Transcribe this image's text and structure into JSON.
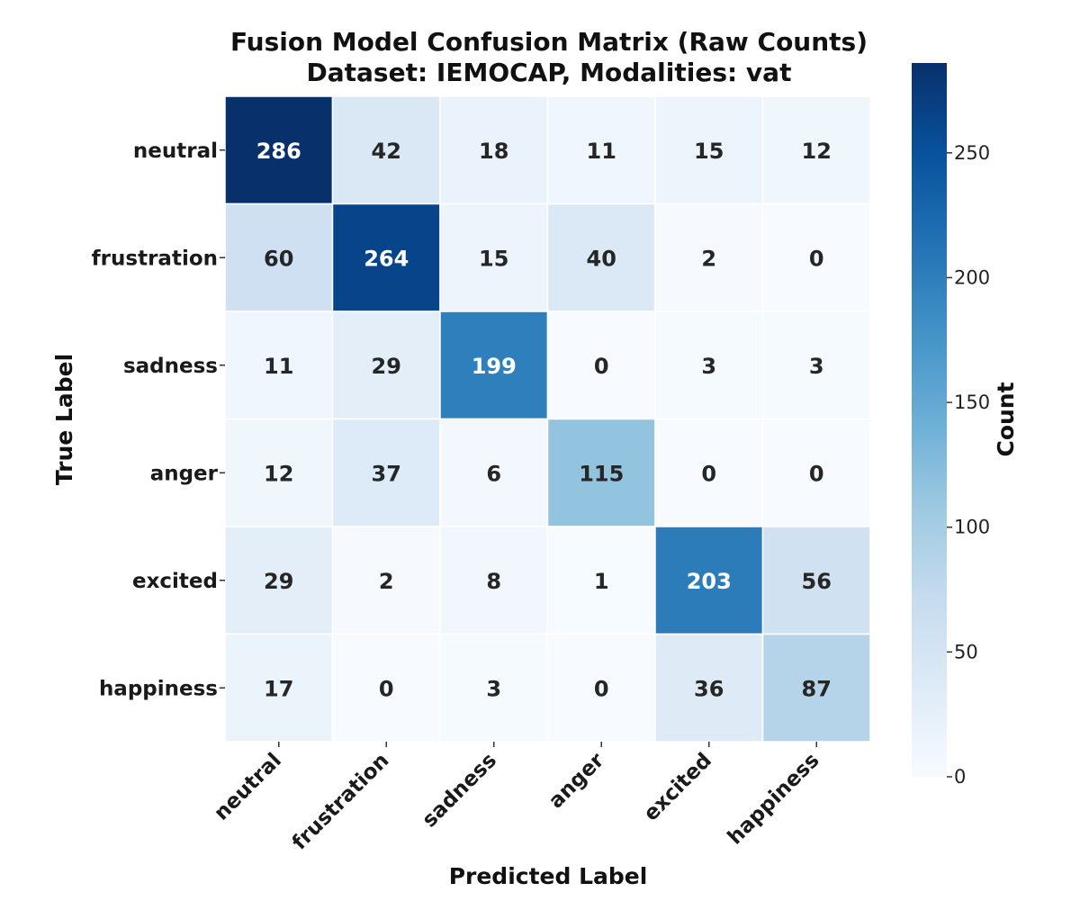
{
  "chart_data": {
    "type": "heatmap",
    "title": "Fusion Model Confusion Matrix (Raw Counts)",
    "subtitle": "Dataset: IEMOCAP, Modalities: vat",
    "xlabel": "Predicted Label",
    "ylabel": "True Label",
    "x_categories": [
      "neutral",
      "frustration",
      "sadness",
      "anger",
      "excited",
      "happiness"
    ],
    "y_categories": [
      "neutral",
      "frustration",
      "sadness",
      "anger",
      "excited",
      "happiness"
    ],
    "values": [
      [
        286,
        42,
        18,
        11,
        15,
        12
      ],
      [
        60,
        264,
        15,
        40,
        2,
        0
      ],
      [
        11,
        29,
        199,
        0,
        3,
        3
      ],
      [
        12,
        37,
        6,
        115,
        0,
        0
      ],
      [
        29,
        2,
        8,
        1,
        203,
        56
      ],
      [
        17,
        0,
        3,
        0,
        36,
        87
      ]
    ],
    "colormap": "Blues",
    "colorbar": {
      "label": "Count",
      "range": [
        0,
        286
      ],
      "ticks": [
        0,
        50,
        100,
        150,
        200,
        250
      ]
    },
    "colors": {
      "low": "#f7fbff",
      "high": "#08306b",
      "text_light": "#ffffff",
      "text_dark": "#262626"
    }
  }
}
